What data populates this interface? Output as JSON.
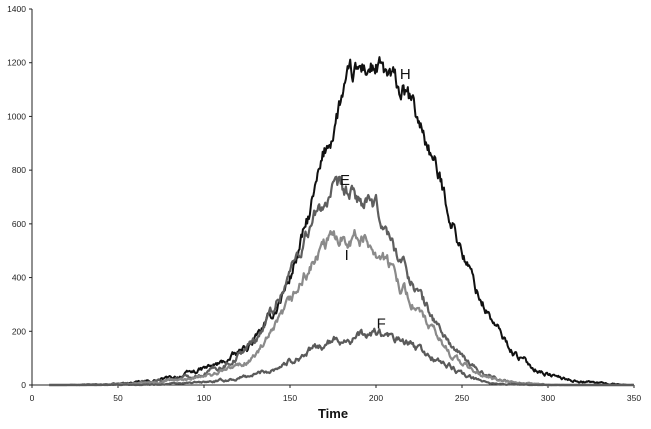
{
  "chart_data": {
    "type": "line",
    "title": "",
    "xlabel": "Time",
    "ylabel": "",
    "xlim": [
      0,
      350
    ],
    "ylim": [
      0,
      1400
    ],
    "x_ticks": [
      0,
      50,
      100,
      150,
      200,
      250,
      300,
      350
    ],
    "y_ticks": [
      0,
      200,
      400,
      600,
      800,
      1000,
      1200,
      1400
    ],
    "grid": false,
    "legend": "none",
    "x": [
      10,
      20,
      30,
      40,
      50,
      60,
      70,
      80,
      90,
      100,
      110,
      120,
      130,
      140,
      150,
      160,
      170,
      175,
      180,
      185,
      190,
      195,
      200,
      205,
      210,
      220,
      230,
      240,
      250,
      260,
      270,
      280,
      290,
      300,
      310,
      320,
      330,
      340,
      350
    ],
    "series": [
      {
        "name": "H",
        "color": "#111111",
        "values": [
          0,
          0,
          1,
          2,
          4,
          8,
          15,
          25,
          40,
          60,
          80,
          115,
          170,
          260,
          400,
          600,
          850,
          950,
          1070,
          1130,
          1160,
          1185,
          1180,
          1150,
          1120,
          1050,
          900,
          700,
          500,
          330,
          210,
          120,
          70,
          40,
          22,
          14,
          8,
          3,
          0
        ]
      },
      {
        "name": "E",
        "color": "#5e5e5e",
        "values": [
          0,
          0,
          1,
          2,
          4,
          8,
          15,
          22,
          30,
          45,
          70,
          110,
          170,
          280,
          420,
          570,
          680,
          710,
          715,
          700,
          690,
          670,
          650,
          590,
          520,
          400,
          280,
          180,
          100,
          50,
          25,
          10,
          4,
          1,
          0,
          0,
          0,
          0,
          0
        ]
      },
      {
        "name": "I",
        "color": "#8a8a8a",
        "values": [
          0,
          0,
          0,
          1,
          2,
          4,
          8,
          15,
          20,
          30,
          50,
          70,
          110,
          190,
          300,
          420,
          510,
          545,
          560,
          560,
          550,
          530,
          510,
          470,
          420,
          320,
          220,
          140,
          80,
          40,
          18,
          8,
          3,
          1,
          0,
          0,
          0,
          0,
          0
        ]
      },
      {
        "name": "F",
        "color": "#5a5a5a",
        "values": [
          0,
          0,
          0,
          0,
          1,
          1,
          2,
          4,
          6,
          10,
          15,
          25,
          40,
          60,
          90,
          120,
          150,
          160,
          170,
          175,
          180,
          185,
          195,
          180,
          170,
          150,
          110,
          80,
          40,
          15,
          5,
          2,
          1,
          0,
          0,
          0,
          0,
          0,
          0
        ]
      }
    ],
    "series_labels": [
      {
        "text": "H",
        "x": 217,
        "y": 1140
      },
      {
        "text": "E",
        "x": 182,
        "y": 745
      },
      {
        "text": "I",
        "x": 183,
        "y": 465
      },
      {
        "text": "F",
        "x": 203,
        "y": 210
      }
    ]
  }
}
